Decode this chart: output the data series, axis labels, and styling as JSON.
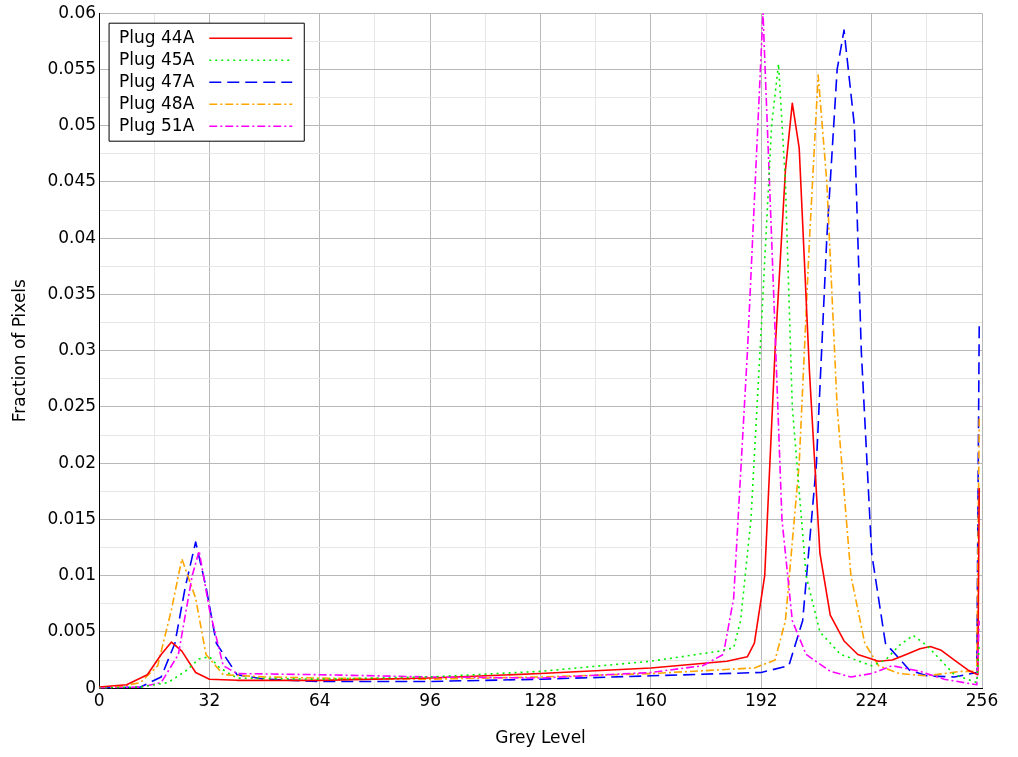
{
  "chart_data": {
    "type": "line",
    "xlabel": "Grey Level",
    "ylabel": "Fraction of Pixels",
    "xlim": [
      0,
      256
    ],
    "ylim": [
      0,
      0.06
    ],
    "xticks": [
      0,
      {
        "value": 16,
        "label": null
      },
      32,
      {
        "value": 48,
        "label": null
      },
      64,
      {
        "value": 80,
        "label": null
      },
      96,
      {
        "value": 112,
        "label": null
      },
      128,
      {
        "value": 144,
        "label": null
      },
      160,
      {
        "value": 176,
        "label": null
      },
      192,
      {
        "value": 208,
        "label": null
      },
      224,
      {
        "value": 240,
        "label": null
      },
      256
    ],
    "yticks": [
      0,
      {
        "value": 0.0025,
        "label": null
      },
      0.005,
      {
        "value": 0.0075,
        "label": null
      },
      0.01,
      {
        "value": 0.0125,
        "label": null
      },
      0.015,
      {
        "value": 0.0175,
        "label": null
      },
      0.02,
      {
        "value": 0.0225,
        "label": null
      },
      0.025,
      {
        "value": 0.0275,
        "label": null
      },
      0.03,
      {
        "value": 0.0325,
        "label": null
      },
      0.035,
      {
        "value": 0.0375,
        "label": null
      },
      0.04,
      {
        "value": 0.0425,
        "label": null
      },
      0.045,
      {
        "value": 0.0475,
        "label": null
      },
      0.05,
      {
        "value": 0.0525,
        "label": null
      },
      0.055,
      {
        "value": 0.0575,
        "label": null
      },
      0.06
    ],
    "grid": true,
    "legend": "top left",
    "marker": "none",
    "series": [
      {
        "name": "Plug 44A",
        "color": "#ff0000",
        "line_style": "solid",
        "x": [
          0,
          8,
          14,
          18,
          21,
          24,
          28,
          32,
          40,
          64,
          96,
          128,
          160,
          182,
          188,
          190,
          193,
          196,
          199,
          201,
          203,
          206,
          209,
          212,
          216,
          220,
          226,
          230,
          234,
          238,
          241,
          244,
          248,
          252,
          254.8,
          255.2
        ],
        "values": [
          0.0001,
          0.0003,
          0.0012,
          0.003,
          0.0041,
          0.0033,
          0.0014,
          0.0008,
          0.0007,
          0.0007,
          0.0009,
          0.0013,
          0.0018,
          0.0024,
          0.0028,
          0.004,
          0.01,
          0.03,
          0.046,
          0.052,
          0.048,
          0.028,
          0.012,
          0.0065,
          0.0042,
          0.003,
          0.0024,
          0.0025,
          0.003,
          0.0035,
          0.0037,
          0.0034,
          0.0025,
          0.0016,
          0.0012,
          0.0178
        ]
      },
      {
        "name": "Plug 45A",
        "color": "#00ee00",
        "line_style": "dotted",
        "x": [
          0,
          12,
          20,
          25,
          29,
          32,
          35,
          40,
          64,
          96,
          128,
          160,
          180,
          184,
          186,
          189,
          192,
          195,
          197,
          199,
          201,
          205,
          209,
          215,
          224,
          228,
          232,
          236,
          240,
          244,
          248,
          254.5,
          255.2
        ],
        "values": [
          0,
          0.0001,
          0.0005,
          0.0015,
          0.0026,
          0.0028,
          0.0018,
          0.0009,
          0.0008,
          0.001,
          0.0015,
          0.0024,
          0.0033,
          0.0036,
          0.006,
          0.015,
          0.032,
          0.05,
          0.0555,
          0.045,
          0.025,
          0.01,
          0.005,
          0.003,
          0.002,
          0.0025,
          0.0038,
          0.0047,
          0.0038,
          0.0025,
          0.0012,
          0.0005,
          0.004
        ]
      },
      {
        "name": "Plug 47A",
        "color": "#0000ff",
        "line_style": "dashed",
        "x": [
          0,
          12,
          18,
          22,
          25,
          28,
          31,
          34,
          40,
          48,
          64,
          96,
          128,
          160,
          192,
          200,
          204,
          208,
          211,
          214,
          216,
          219,
          221,
          224,
          228,
          235,
          240,
          248,
          254.5,
          255.2
        ],
        "values": [
          0,
          0.0001,
          0.001,
          0.004,
          0.009,
          0.013,
          0.009,
          0.004,
          0.0012,
          0.0008,
          0.0006,
          0.0006,
          0.0008,
          0.0011,
          0.0014,
          0.002,
          0.006,
          0.02,
          0.04,
          0.055,
          0.0585,
          0.05,
          0.03,
          0.012,
          0.004,
          0.0016,
          0.0011,
          0.001,
          0.0014,
          0.0325
        ]
      },
      {
        "name": "Plug 48A",
        "color": "#ffa500",
        "line_style": "dashdot",
        "x": [
          0,
          5,
          12,
          17,
          21,
          24,
          28,
          31,
          36,
          48,
          64,
          96,
          128,
          160,
          190,
          196,
          199,
          203,
          206,
          208.5,
          211,
          214,
          218,
          222,
          226,
          232,
          240,
          250,
          254.5,
          255.2
        ],
        "values": [
          0,
          0.0001,
          0.0005,
          0.002,
          0.007,
          0.0115,
          0.008,
          0.003,
          0.0012,
          0.001,
          0.0009,
          0.0008,
          0.001,
          0.0013,
          0.0018,
          0.0025,
          0.006,
          0.02,
          0.04,
          0.0545,
          0.045,
          0.025,
          0.01,
          0.004,
          0.002,
          0.0013,
          0.0011,
          0.0015,
          0.0015,
          0.024
        ]
      },
      {
        "name": "Plug 51A",
        "color": "#ff00ff",
        "line_style": "dashdot",
        "x": [
          0,
          12,
          18,
          23,
          27,
          29,
          32,
          36,
          40,
          64,
          96,
          128,
          160,
          175,
          181,
          184,
          188,
          192.5,
          195,
          198,
          201,
          205,
          212,
          218,
          224,
          230,
          238,
          245,
          254.5,
          255.2
        ],
        "values": [
          0,
          0.0001,
          0.0005,
          0.003,
          0.01,
          0.0122,
          0.007,
          0.002,
          0.0013,
          0.0012,
          0.001,
          0.0009,
          0.0014,
          0.002,
          0.003,
          0.008,
          0.03,
          0.06,
          0.04,
          0.015,
          0.006,
          0.003,
          0.0015,
          0.001,
          0.0013,
          0.002,
          0.0015,
          0.0008,
          0.0003,
          0.006
        ]
      }
    ]
  }
}
